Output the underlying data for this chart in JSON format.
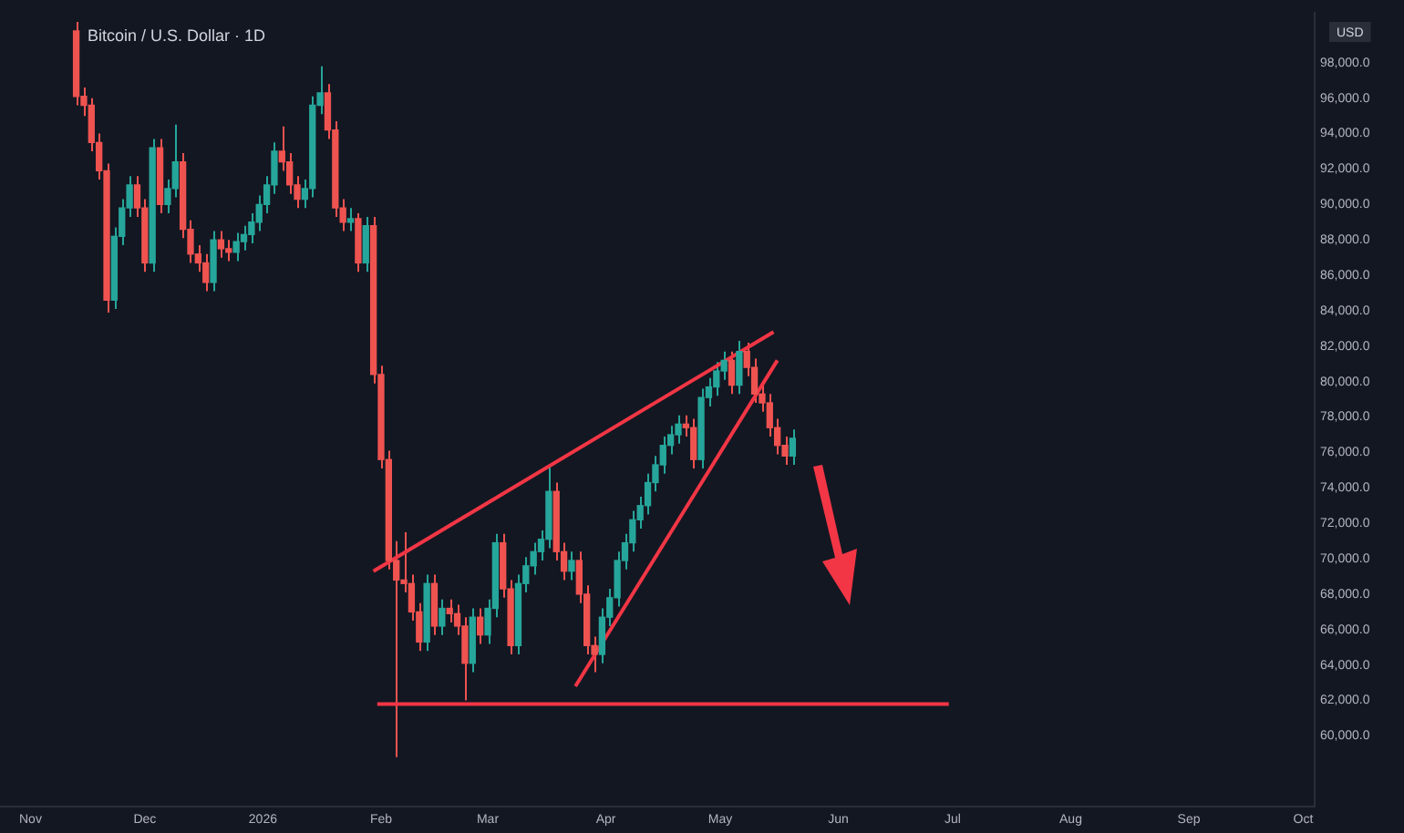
{
  "chart_data": {
    "type": "candlestick",
    "title": "Bitcoin / U.S. Dollar · 1D",
    "ylabel": "USD",
    "xlim": [
      "2025-10-24",
      "2026-10-04"
    ],
    "xticks": [
      {
        "value": "2025-11-01",
        "label": "Nov"
      },
      {
        "value": "2025-12-01",
        "label": "Dec"
      },
      {
        "value": "2026-01-01",
        "label": "2026"
      },
      {
        "value": "2026-02-01",
        "label": "Feb"
      },
      {
        "value": "2026-03-01",
        "label": "Mar"
      },
      {
        "value": "2026-04-01",
        "label": "Apr"
      },
      {
        "value": "2026-05-01",
        "label": "May"
      },
      {
        "value": "2026-06-01",
        "label": "Jun"
      },
      {
        "value": "2026-07-01",
        "label": "Jul"
      },
      {
        "value": "2026-08-01",
        "label": "Aug"
      },
      {
        "value": "2026-09-01",
        "label": "Sep"
      },
      {
        "value": "2026-10-01",
        "label": "Oct"
      }
    ],
    "ylim": [
      56000,
      100800
    ],
    "yticks": [
      {
        "value": 60000,
        "label": "60,000.0"
      },
      {
        "value": 62000,
        "label": "62,000.0"
      },
      {
        "value": 64000,
        "label": "64,000.0"
      },
      {
        "value": 66000,
        "label": "66,000.0"
      },
      {
        "value": 68000,
        "label": "68,000.0"
      },
      {
        "value": 70000,
        "label": "70,000.0"
      },
      {
        "value": 72000,
        "label": "72,000.0"
      },
      {
        "value": 74000,
        "label": "74,000.0"
      },
      {
        "value": 76000,
        "label": "76,000.0"
      },
      {
        "value": 78000,
        "label": "78,000.0"
      },
      {
        "value": 80000,
        "label": "80,000.0"
      },
      {
        "value": 82000,
        "label": "82,000.0"
      },
      {
        "value": 84000,
        "label": "84,000.0"
      },
      {
        "value": 86000,
        "label": "86,000.0"
      },
      {
        "value": 88000,
        "label": "88,000.0"
      },
      {
        "value": 90000,
        "label": "90,000.0"
      },
      {
        "value": 92000,
        "label": "92,000.0"
      },
      {
        "value": 94000,
        "label": "94,000.0"
      },
      {
        "value": 96000,
        "label": "96,000.0"
      },
      {
        "value": 98000,
        "label": "98,000.0"
      }
    ],
    "series": [
      {
        "x": [
          "2025-11-13",
          "2025-11-15",
          "2025-11-17",
          "2025-11-19",
          "2025-11-21",
          "2025-11-23",
          "2025-11-25",
          "2025-11-27",
          "2025-11-29",
          "2025-12-01",
          "2025-12-03",
          "2025-12-05",
          "2025-12-07",
          "2025-12-09",
          "2025-12-11",
          "2025-12-13",
          "2025-12-15",
          "2025-12-17",
          "2025-12-19",
          "2025-12-21",
          "2025-12-23",
          "2025-12-25",
          "2025-12-27",
          "2025-12-29",
          "2025-12-31",
          "2026-01-02",
          "2026-01-04",
          "2026-01-06",
          "2026-01-08",
          "2026-01-10",
          "2026-01-12",
          "2026-01-14",
          "2026-01-16",
          "2026-01-18",
          "2026-01-20",
          "2026-01-22",
          "2026-01-24",
          "2026-01-26",
          "2026-01-28",
          "2026-01-30",
          "2026-02-01",
          "2026-02-03",
          "2026-02-05",
          "2026-02-07",
          "2026-02-09",
          "2026-02-11",
          "2026-02-13",
          "2026-02-15",
          "2026-02-17",
          "2026-02-19",
          "2026-02-21",
          "2026-02-23",
          "2026-02-25",
          "2026-02-27",
          "2026-03-01",
          "2026-03-03",
          "2026-03-05",
          "2026-03-07",
          "2026-03-09",
          "2026-03-11",
          "2026-03-13",
          "2026-03-15",
          "2026-03-17",
          "2026-03-19",
          "2026-03-21",
          "2026-03-23",
          "2026-03-25",
          "2026-03-27",
          "2026-03-29",
          "2026-03-31",
          "2026-04-02",
          "2026-04-04",
          "2026-04-06",
          "2026-04-08",
          "2026-04-10",
          "2026-04-12",
          "2026-04-14",
          "2026-04-16",
          "2026-04-18",
          "2026-04-20",
          "2026-04-22",
          "2026-04-24",
          "2026-04-26",
          "2026-04-28",
          "2026-04-30",
          "2026-05-02",
          "2026-05-04",
          "2026-05-06",
          "2026-05-08",
          "2026-05-10",
          "2026-05-12",
          "2026-05-14",
          "2026-05-16",
          "2026-05-18",
          "2026-05-20"
        ],
        "ohlc": [
          [
            99800,
            100300,
            95600,
            96100
          ],
          [
            96100,
            96600,
            95000,
            95600
          ],
          [
            95600,
            96000,
            93000,
            93500
          ],
          [
            93500,
            94000,
            91400,
            91900
          ],
          [
            91900,
            92300,
            83900,
            84600
          ],
          [
            84600,
            88700,
            84100,
            88200
          ],
          [
            88200,
            90300,
            87700,
            89800
          ],
          [
            89800,
            91600,
            89300,
            91100
          ],
          [
            91100,
            91600,
            89300,
            89800
          ],
          [
            89800,
            90300,
            86200,
            86700
          ],
          [
            86700,
            93700,
            86200,
            93200
          ],
          [
            93200,
            93700,
            89500,
            90000
          ],
          [
            90000,
            91400,
            89500,
            90900
          ],
          [
            90900,
            94500,
            90400,
            92400
          ],
          [
            92400,
            92900,
            88100,
            88600
          ],
          [
            88600,
            89100,
            86700,
            87200
          ],
          [
            87200,
            87700,
            86200,
            86700
          ],
          [
            86700,
            87200,
            85100,
            85600
          ],
          [
            85600,
            88500,
            85100,
            88000
          ],
          [
            88000,
            88500,
            87000,
            87500
          ],
          [
            87500,
            88000,
            86800,
            87300
          ],
          [
            87300,
            88400,
            86800,
            87900
          ],
          [
            87900,
            88800,
            87400,
            88300
          ],
          [
            88300,
            89500,
            87800,
            89000
          ],
          [
            89000,
            90500,
            88500,
            90000
          ],
          [
            90000,
            91600,
            89500,
            91100
          ],
          [
            91100,
            93500,
            90600,
            93000
          ],
          [
            93000,
            94400,
            91900,
            92400
          ],
          [
            92400,
            92900,
            90600,
            91100
          ],
          [
            91100,
            91600,
            89800,
            90300
          ],
          [
            90300,
            91400,
            89800,
            90900
          ],
          [
            90900,
            96100,
            90400,
            95600
          ],
          [
            95600,
            97800,
            95100,
            96300
          ],
          [
            96300,
            96800,
            93700,
            94200
          ],
          [
            94200,
            94700,
            89300,
            89800
          ],
          [
            89800,
            90300,
            88500,
            89000
          ],
          [
            89000,
            89800,
            88500,
            89200
          ],
          [
            89200,
            89500,
            86200,
            86700
          ],
          [
            86700,
            89300,
            86200,
            88800
          ],
          [
            88800,
            89300,
            79900,
            80400
          ],
          [
            80400,
            80900,
            75100,
            75600
          ],
          [
            75600,
            76100,
            69400,
            69900
          ],
          [
            69900,
            71000,
            58800,
            68800
          ],
          [
            68800,
            71500,
            68100,
            68600
          ],
          [
            68600,
            69100,
            66500,
            67000
          ],
          [
            67000,
            67500,
            64800,
            65300
          ],
          [
            65300,
            69100,
            64800,
            68600
          ],
          [
            68600,
            69100,
            65700,
            66200
          ],
          [
            66200,
            67700,
            65700,
            67200
          ],
          [
            67200,
            67700,
            66400,
            66900
          ],
          [
            66900,
            67400,
            65700,
            66200
          ],
          [
            66200,
            66700,
            62000,
            64100
          ],
          [
            64100,
            67200,
            63600,
            66700
          ],
          [
            66700,
            67200,
            65200,
            65700
          ],
          [
            65700,
            67700,
            65200,
            67200
          ],
          [
            67200,
            71400,
            66700,
            70900
          ],
          [
            70900,
            71400,
            67800,
            68300
          ],
          [
            68300,
            68800,
            64600,
            65100
          ],
          [
            65100,
            69100,
            64600,
            68600
          ],
          [
            68600,
            70100,
            68100,
            69600
          ],
          [
            69600,
            70900,
            69100,
            70400
          ],
          [
            70400,
            71600,
            69900,
            71100
          ],
          [
            71100,
            75300,
            70600,
            73800
          ],
          [
            73800,
            74300,
            69900,
            70400
          ],
          [
            70400,
            70900,
            68800,
            69300
          ],
          [
            69300,
            70400,
            68800,
            69900
          ],
          [
            69900,
            70400,
            67500,
            68000
          ],
          [
            68000,
            68500,
            64600,
            65100
          ],
          [
            65100,
            65600,
            63600,
            64600
          ],
          [
            64600,
            67200,
            64100,
            66700
          ],
          [
            66700,
            68300,
            66200,
            67800
          ],
          [
            67800,
            70400,
            67300,
            69900
          ],
          [
            69900,
            71400,
            69400,
            70900
          ],
          [
            70900,
            72700,
            70400,
            72200
          ],
          [
            72200,
            73500,
            71700,
            73000
          ],
          [
            73000,
            74800,
            72500,
            74300
          ],
          [
            74300,
            75800,
            73800,
            75300
          ],
          [
            75300,
            76900,
            74800,
            76400
          ],
          [
            76400,
            77500,
            75900,
            77000
          ],
          [
            77000,
            78100,
            76500,
            77600
          ],
          [
            77600,
            78100,
            76900,
            77400
          ],
          [
            77400,
            77900,
            75100,
            75600
          ],
          [
            75600,
            79600,
            75100,
            79100
          ],
          [
            79100,
            80200,
            78600,
            79700
          ],
          [
            79700,
            81100,
            79200,
            80600
          ],
          [
            80600,
            81700,
            80100,
            81200
          ],
          [
            81200,
            81700,
            79300,
            79800
          ],
          [
            79800,
            82300,
            79300,
            81700
          ],
          [
            81700,
            82200,
            80300,
            80800
          ],
          [
            80800,
            81300,
            78800,
            79300
          ],
          [
            79300,
            79800,
            78300,
            78800
          ],
          [
            78800,
            79300,
            76900,
            77400
          ],
          [
            77400,
            77900,
            75900,
            76400
          ],
          [
            76400,
            76900,
            75300,
            75800
          ],
          [
            75800,
            77300,
            75300,
            76800
          ]
        ]
      },
      {
        "type": "line",
        "color": "#f23645",
        "x": [
          "2026-01-30",
          "2026-05-15"
        ],
        "values": [
          69300,
          82800
        ]
      },
      {
        "type": "line",
        "color": "#f23645",
        "x": [
          "2026-03-24",
          "2026-05-16"
        ],
        "values": [
          62800,
          81200
        ]
      },
      {
        "type": "line",
        "color": "#f23645",
        "x": [
          "2026-01-31",
          "2026-06-30"
        ],
        "values": [
          61800,
          61800
        ]
      }
    ],
    "grid": false,
    "legend": false,
    "marker": "none",
    "line_style": "solid"
  }
}
